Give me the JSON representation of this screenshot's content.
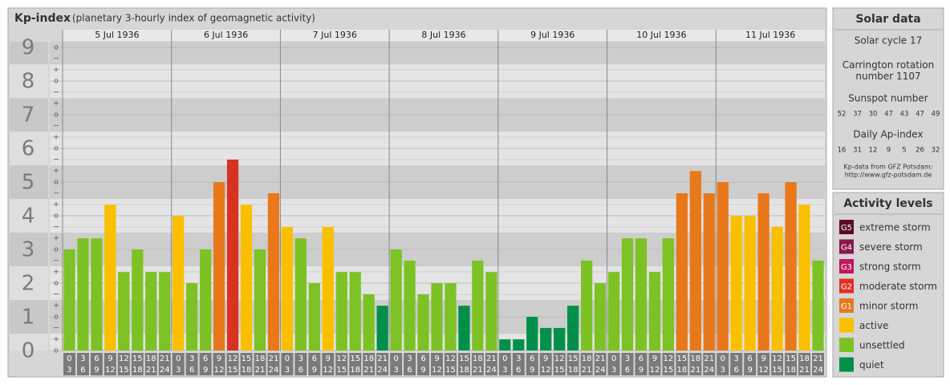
{
  "chart_data": {
    "type": "bar",
    "title": "Kp-index",
    "subtitle": "(planetary 3-hourly index of geomagnetic activity)",
    "days": [
      "5 Jul 1936",
      "6 Jul 1936",
      "7 Jul 1936",
      "8 Jul 1936",
      "9 Jul 1936",
      "10 Jul 1936",
      "11 Jul 1936"
    ],
    "hours": [
      {
        "from": "0",
        "to": "3"
      },
      {
        "from": "3",
        "to": "6"
      },
      {
        "from": "6",
        "to": "9"
      },
      {
        "from": "9",
        "to": "12"
      },
      {
        "from": "12",
        "to": "15"
      },
      {
        "from": "15",
        "to": "18"
      },
      {
        "from": "18",
        "to": "21"
      },
      {
        "from": "21",
        "to": "24"
      }
    ],
    "values": [
      3,
      3.33,
      3.33,
      4.33,
      2.33,
      3,
      2.33,
      2.33,
      4,
      2,
      3,
      5,
      5.67,
      4.33,
      3,
      4.67,
      3.67,
      3.33,
      2,
      3.67,
      2.33,
      2.33,
      1.67,
      1.33,
      3,
      2.67,
      1.67,
      2,
      2,
      1.33,
      2.67,
      2.33,
      0.33,
      0.33,
      1,
      0.67,
      0.67,
      1.33,
      2.67,
      2,
      2.33,
      3.33,
      3.33,
      2.33,
      3.33,
      4.67,
      5.33,
      4.67,
      5,
      4,
      4,
      4.67,
      3.67,
      5,
      4.33,
      2.67
    ],
    "colors": [
      "#7cc224",
      "#7cc224",
      "#7cc224",
      "#fac000",
      "#7cc224",
      "#7cc224",
      "#7cc224",
      "#7cc224",
      "#fac000",
      "#7cc224",
      "#7cc224",
      "#e8781a",
      "#d83222",
      "#fac000",
      "#7cc224",
      "#e8781a",
      "#fac000",
      "#7cc224",
      "#7cc224",
      "#fac000",
      "#7cc224",
      "#7cc224",
      "#7cc224",
      "#00904a",
      "#7cc224",
      "#7cc224",
      "#7cc224",
      "#7cc224",
      "#7cc224",
      "#00904a",
      "#7cc224",
      "#7cc224",
      "#00904a",
      "#00904a",
      "#00904a",
      "#00904a",
      "#00904a",
      "#00904a",
      "#7cc224",
      "#7cc224",
      "#7cc224",
      "#7cc224",
      "#7cc224",
      "#7cc224",
      "#7cc224",
      "#e8781a",
      "#e8781a",
      "#e8781a",
      "#e8781a",
      "#fac000",
      "#fac000",
      "#e8781a",
      "#fac000",
      "#e8781a",
      "#fac000",
      "#7cc224"
    ],
    "ylim": [
      0,
      9.17
    ],
    "yticks": [
      0,
      1,
      2,
      3,
      4,
      5,
      6,
      7,
      8,
      9
    ],
    "ysub": [
      "−",
      "o",
      "+"
    ]
  },
  "solar": {
    "title": "Solar data",
    "cycle": "Solar cycle 17",
    "carrington": "Carrington rotation number 1107",
    "sunspot_title": "Sunspot number",
    "sunspot": [
      52,
      37,
      30,
      47,
      43,
      47,
      49
    ],
    "ap_title": "Daily Ap-index",
    "ap": [
      16,
      31,
      12,
      9,
      5,
      26,
      32
    ],
    "source": "Kp-data from GFZ Potsdam:",
    "url": "http://www.gfz-potsdam.de"
  },
  "levels": {
    "title": "Activity levels",
    "items": [
      {
        "badge": "G5",
        "label": "extreme storm",
        "color": "#5a0a2a"
      },
      {
        "badge": "G4",
        "label": "severe storm",
        "color": "#8b1848"
      },
      {
        "badge": "G3",
        "label": "strong storm",
        "color": "#c0185a"
      },
      {
        "badge": "G2",
        "label": "moderate storm",
        "color": "#e03020"
      },
      {
        "badge": "G1",
        "label": "minor storm",
        "color": "#e87820"
      },
      {
        "label": "active",
        "color": "#fac000"
      },
      {
        "label": "unsettled",
        "color": "#7cc224"
      },
      {
        "label": "quiet",
        "color": "#00904a"
      }
    ]
  }
}
